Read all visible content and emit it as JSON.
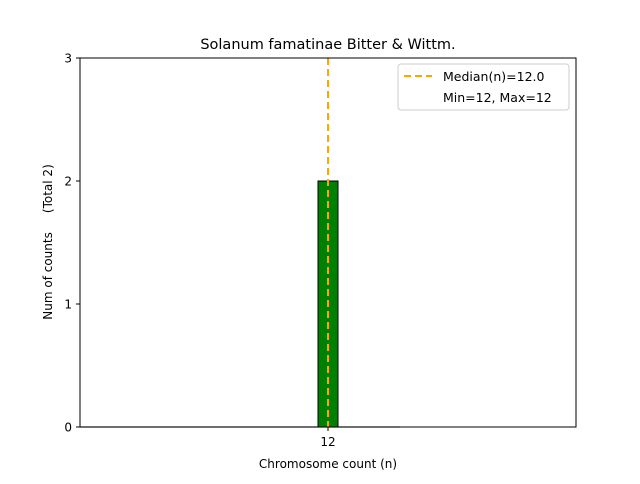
{
  "chart_data": {
    "type": "bar",
    "title": "Solanum famatinae Bitter & Wittm.",
    "xlabel": "Chromosome count (n)",
    "ylabel": "Num of counts     (Total 2)",
    "categories": [
      "12"
    ],
    "x": [
      12
    ],
    "values": [
      2
    ],
    "xlim": [
      -0.4,
      24.4
    ],
    "ylim": [
      0,
      3
    ],
    "yticks": [
      "0",
      "1",
      "2",
      "3"
    ],
    "xticks": [
      "12"
    ],
    "bar_color": "#008000",
    "median": 12.0,
    "median_color": "#FFA500",
    "grid": false,
    "legend_position": "top-right",
    "legend": [
      "Median(n)=12.0",
      "Min=12, Max=12"
    ]
  }
}
